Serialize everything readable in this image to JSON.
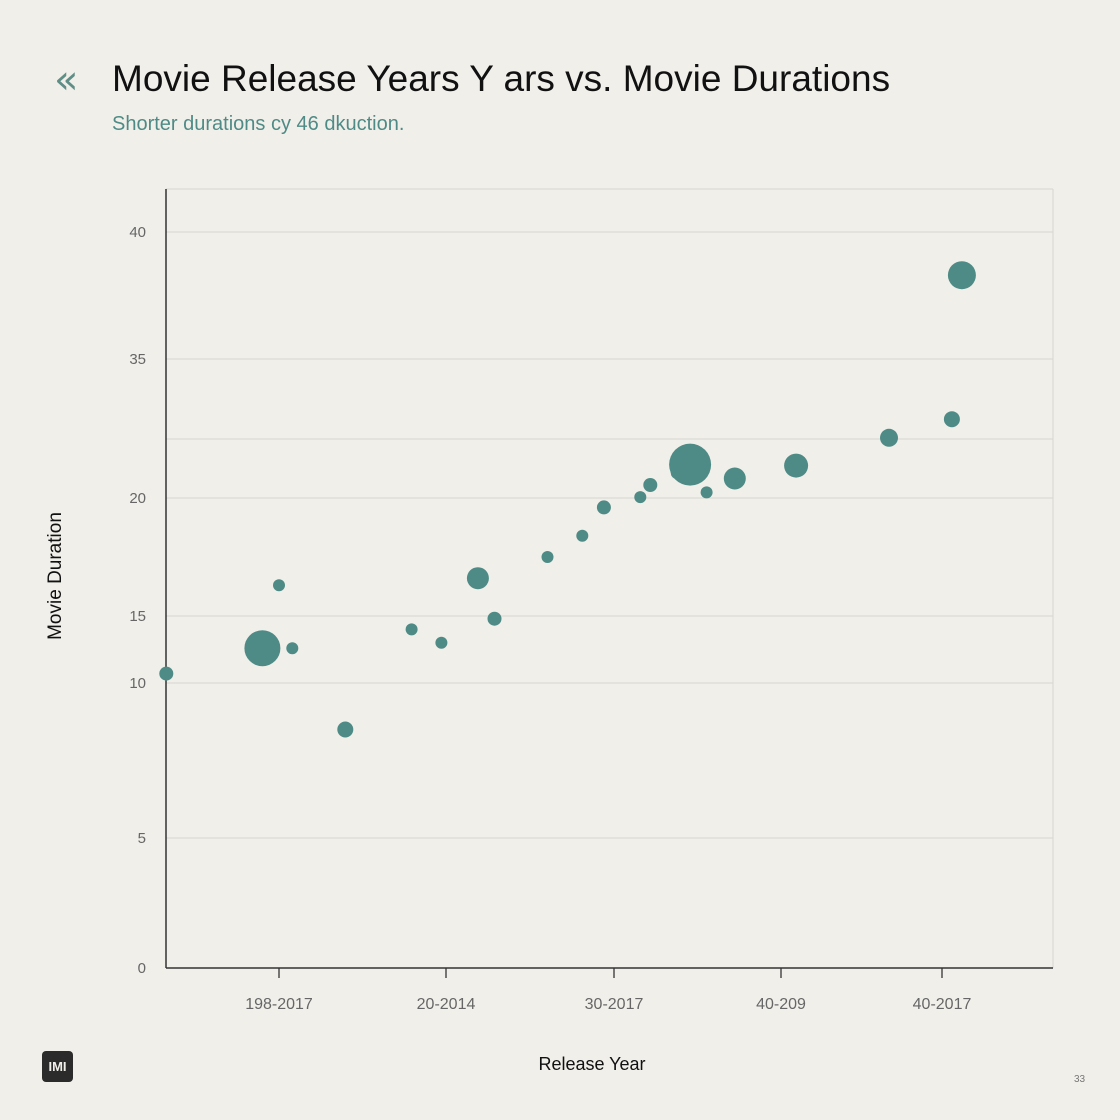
{
  "header": {
    "back_icon": "«",
    "title": "Movie Release Years Y ars vs. Movie Durations",
    "subtitle": "Shorter durations cy 46 dkuction."
  },
  "footer": {
    "logo_text": "IMI",
    "page_number": "33"
  },
  "colors": {
    "point": "#4f8b86",
    "gridline": "#dcd9d3",
    "axis": "#333333",
    "background": "#f1efea"
  },
  "chart_data": {
    "type": "scatter",
    "title": "Movie Release Years Y ars vs. Movie Durations",
    "subtitle": "Shorter durations cy 46 dkuction.",
    "xlabel": "Release Year",
    "ylabel": "Movie Duration",
    "y_ticks": [
      0,
      5,
      10,
      15,
      20,
      35,
      40
    ],
    "x_ticks": [
      "198-2017",
      "20-2014",
      "30-2017",
      "40-209",
      "40-2017"
    ],
    "grid": true,
    "x": [
      0.32,
      0.9,
      1.0,
      1.08,
      1.4,
      1.8,
      1.98,
      2.3,
      2.2,
      2.62,
      2.83,
      2.96,
      3.18,
      3.24,
      3.4,
      3.48,
      3.58,
      3.75,
      4.12,
      4.68,
      5.06,
      5.12
    ],
    "y": [
      10.7,
      12.6,
      16.3,
      12.6,
      8.5,
      14.0,
      13.0,
      14.8,
      16.6,
      17.5,
      18.4,
      19.6,
      20.1,
      21.4,
      22.7,
      23.6,
      20.6,
      22.1,
      23.5,
      26.5,
      28.5,
      38.3
    ],
    "sizes": [
      7,
      18,
      6,
      6,
      8,
      6,
      6,
      7,
      11,
      6,
      6,
      7,
      6,
      7,
      6,
      21,
      6,
      11,
      12,
      9,
      8,
      14
    ]
  }
}
